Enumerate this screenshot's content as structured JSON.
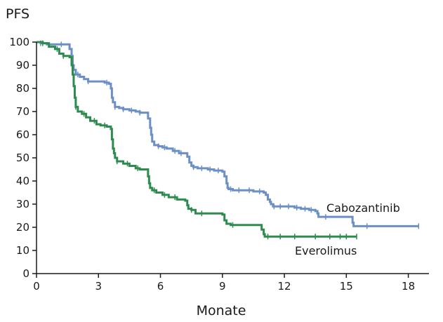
{
  "chart_data": {
    "type": "line",
    "step": true,
    "ylabel": "PFS",
    "xlabel": "Monate",
    "xlim": [
      0,
      19
    ],
    "ylim": [
      0,
      100
    ],
    "xticks": [
      0,
      3,
      6,
      9,
      12,
      15,
      18
    ],
    "yticks": [
      0,
      10,
      20,
      30,
      40,
      50,
      60,
      70,
      80,
      90,
      100
    ],
    "grid": false,
    "series": [
      {
        "name": "Cabozantinib",
        "color": "#6b8fc6",
        "points": [
          [
            0,
            100
          ],
          [
            0.2,
            99.5
          ],
          [
            0.5,
            99
          ],
          [
            1.0,
            99
          ],
          [
            1.5,
            99
          ],
          [
            1.6,
            97
          ],
          [
            1.7,
            94
          ],
          [
            1.75,
            90
          ],
          [
            1.8,
            88
          ],
          [
            1.9,
            86
          ],
          [
            2.1,
            85
          ],
          [
            2.3,
            84
          ],
          [
            2.5,
            83
          ],
          [
            3.0,
            83
          ],
          [
            3.3,
            82.5
          ],
          [
            3.5,
            82
          ],
          [
            3.6,
            80
          ],
          [
            3.65,
            76
          ],
          [
            3.7,
            74
          ],
          [
            3.8,
            72
          ],
          [
            4.0,
            71.5
          ],
          [
            4.2,
            71
          ],
          [
            4.5,
            70.5
          ],
          [
            4.8,
            70
          ],
          [
            5.0,
            69.5
          ],
          [
            5.3,
            69.5
          ],
          [
            5.4,
            67
          ],
          [
            5.5,
            63
          ],
          [
            5.55,
            60
          ],
          [
            5.6,
            57
          ],
          [
            5.7,
            55.5
          ],
          [
            5.9,
            55
          ],
          [
            6.1,
            54.5
          ],
          [
            6.3,
            54
          ],
          [
            6.6,
            53
          ],
          [
            6.9,
            52
          ],
          [
            7.2,
            52
          ],
          [
            7.3,
            50.5
          ],
          [
            7.4,
            48
          ],
          [
            7.5,
            46.5
          ],
          [
            7.6,
            46
          ],
          [
            7.8,
            45.5
          ],
          [
            8.0,
            45.5
          ],
          [
            8.3,
            45
          ],
          [
            8.6,
            44.5
          ],
          [
            9.0,
            44
          ],
          [
            9.1,
            42
          ],
          [
            9.2,
            39
          ],
          [
            9.25,
            37
          ],
          [
            9.3,
            36.5
          ],
          [
            9.5,
            36
          ],
          [
            10.0,
            36
          ],
          [
            10.5,
            35.5
          ],
          [
            11.0,
            35
          ],
          [
            11.1,
            34
          ],
          [
            11.2,
            32
          ],
          [
            11.3,
            31
          ],
          [
            11.35,
            30
          ],
          [
            11.45,
            29
          ],
          [
            12.0,
            29
          ],
          [
            12.5,
            28.5
          ],
          [
            12.8,
            28
          ],
          [
            13.2,
            27.5
          ],
          [
            13.5,
            27
          ],
          [
            13.6,
            26
          ],
          [
            13.65,
            24.5
          ],
          [
            14.0,
            24.5
          ],
          [
            15.2,
            24.5
          ],
          [
            15.3,
            22
          ],
          [
            15.35,
            20.5
          ],
          [
            16.0,
            20.5
          ],
          [
            17.0,
            20.5
          ],
          [
            18.5,
            20.5
          ]
        ],
        "censored": [
          0.2,
          1.2,
          2.0,
          2.5,
          3.4,
          3.8,
          4.2,
          4.6,
          5.0,
          5.9,
          6.2,
          6.7,
          7.0,
          7.6,
          8.0,
          8.4,
          8.8,
          9.4,
          9.8,
          10.3,
          10.8,
          11.5,
          11.8,
          12.2,
          12.6,
          13.0,
          13.3,
          14.0,
          16.0,
          18.5
        ]
      },
      {
        "name": "Everolimus",
        "color": "#2e8b4f",
        "points": [
          [
            0,
            100
          ],
          [
            0.3,
            99.5
          ],
          [
            0.6,
            98
          ],
          [
            0.9,
            97
          ],
          [
            1.1,
            95
          ],
          [
            1.3,
            94
          ],
          [
            1.6,
            93.5
          ],
          [
            1.7,
            90
          ],
          [
            1.75,
            86
          ],
          [
            1.8,
            81
          ],
          [
            1.85,
            76
          ],
          [
            1.9,
            72
          ],
          [
            2.0,
            70
          ],
          [
            2.2,
            69
          ],
          [
            2.4,
            67.5
          ],
          [
            2.6,
            66
          ],
          [
            2.9,
            64.5
          ],
          [
            3.1,
            64
          ],
          [
            3.4,
            63.5
          ],
          [
            3.6,
            62.5
          ],
          [
            3.65,
            58
          ],
          [
            3.7,
            54
          ],
          [
            3.75,
            52
          ],
          [
            3.8,
            50
          ],
          [
            3.9,
            48.5
          ],
          [
            4.2,
            47.5
          ],
          [
            4.5,
            46.5
          ],
          [
            4.8,
            45.5
          ],
          [
            5.0,
            45
          ],
          [
            5.3,
            45
          ],
          [
            5.4,
            42
          ],
          [
            5.45,
            39
          ],
          [
            5.5,
            37
          ],
          [
            5.6,
            36
          ],
          [
            5.8,
            35
          ],
          [
            6.1,
            34
          ],
          [
            6.4,
            33
          ],
          [
            6.8,
            32
          ],
          [
            7.2,
            31.5
          ],
          [
            7.3,
            29.5
          ],
          [
            7.35,
            28
          ],
          [
            7.5,
            27.5
          ],
          [
            7.7,
            26
          ],
          [
            8.0,
            26
          ],
          [
            8.8,
            26
          ],
          [
            9.0,
            25.5
          ],
          [
            9.1,
            23
          ],
          [
            9.2,
            21.5
          ],
          [
            9.4,
            21
          ],
          [
            10.0,
            21
          ],
          [
            10.8,
            21
          ],
          [
            10.9,
            19
          ],
          [
            11.0,
            17
          ],
          [
            11.05,
            16
          ],
          [
            12.0,
            16
          ],
          [
            13.0,
            16
          ],
          [
            14.0,
            16
          ],
          [
            15.5,
            16
          ]
        ],
        "censored": [
          0.3,
          1.0,
          1.3,
          1.9,
          2.3,
          2.8,
          3.3,
          3.9,
          4.4,
          4.9,
          5.7,
          6.2,
          6.7,
          7.5,
          8.0,
          9.5,
          11.2,
          11.8,
          12.5,
          13.5,
          14.2,
          14.7,
          15.0,
          15.5
        ]
      }
    ]
  }
}
